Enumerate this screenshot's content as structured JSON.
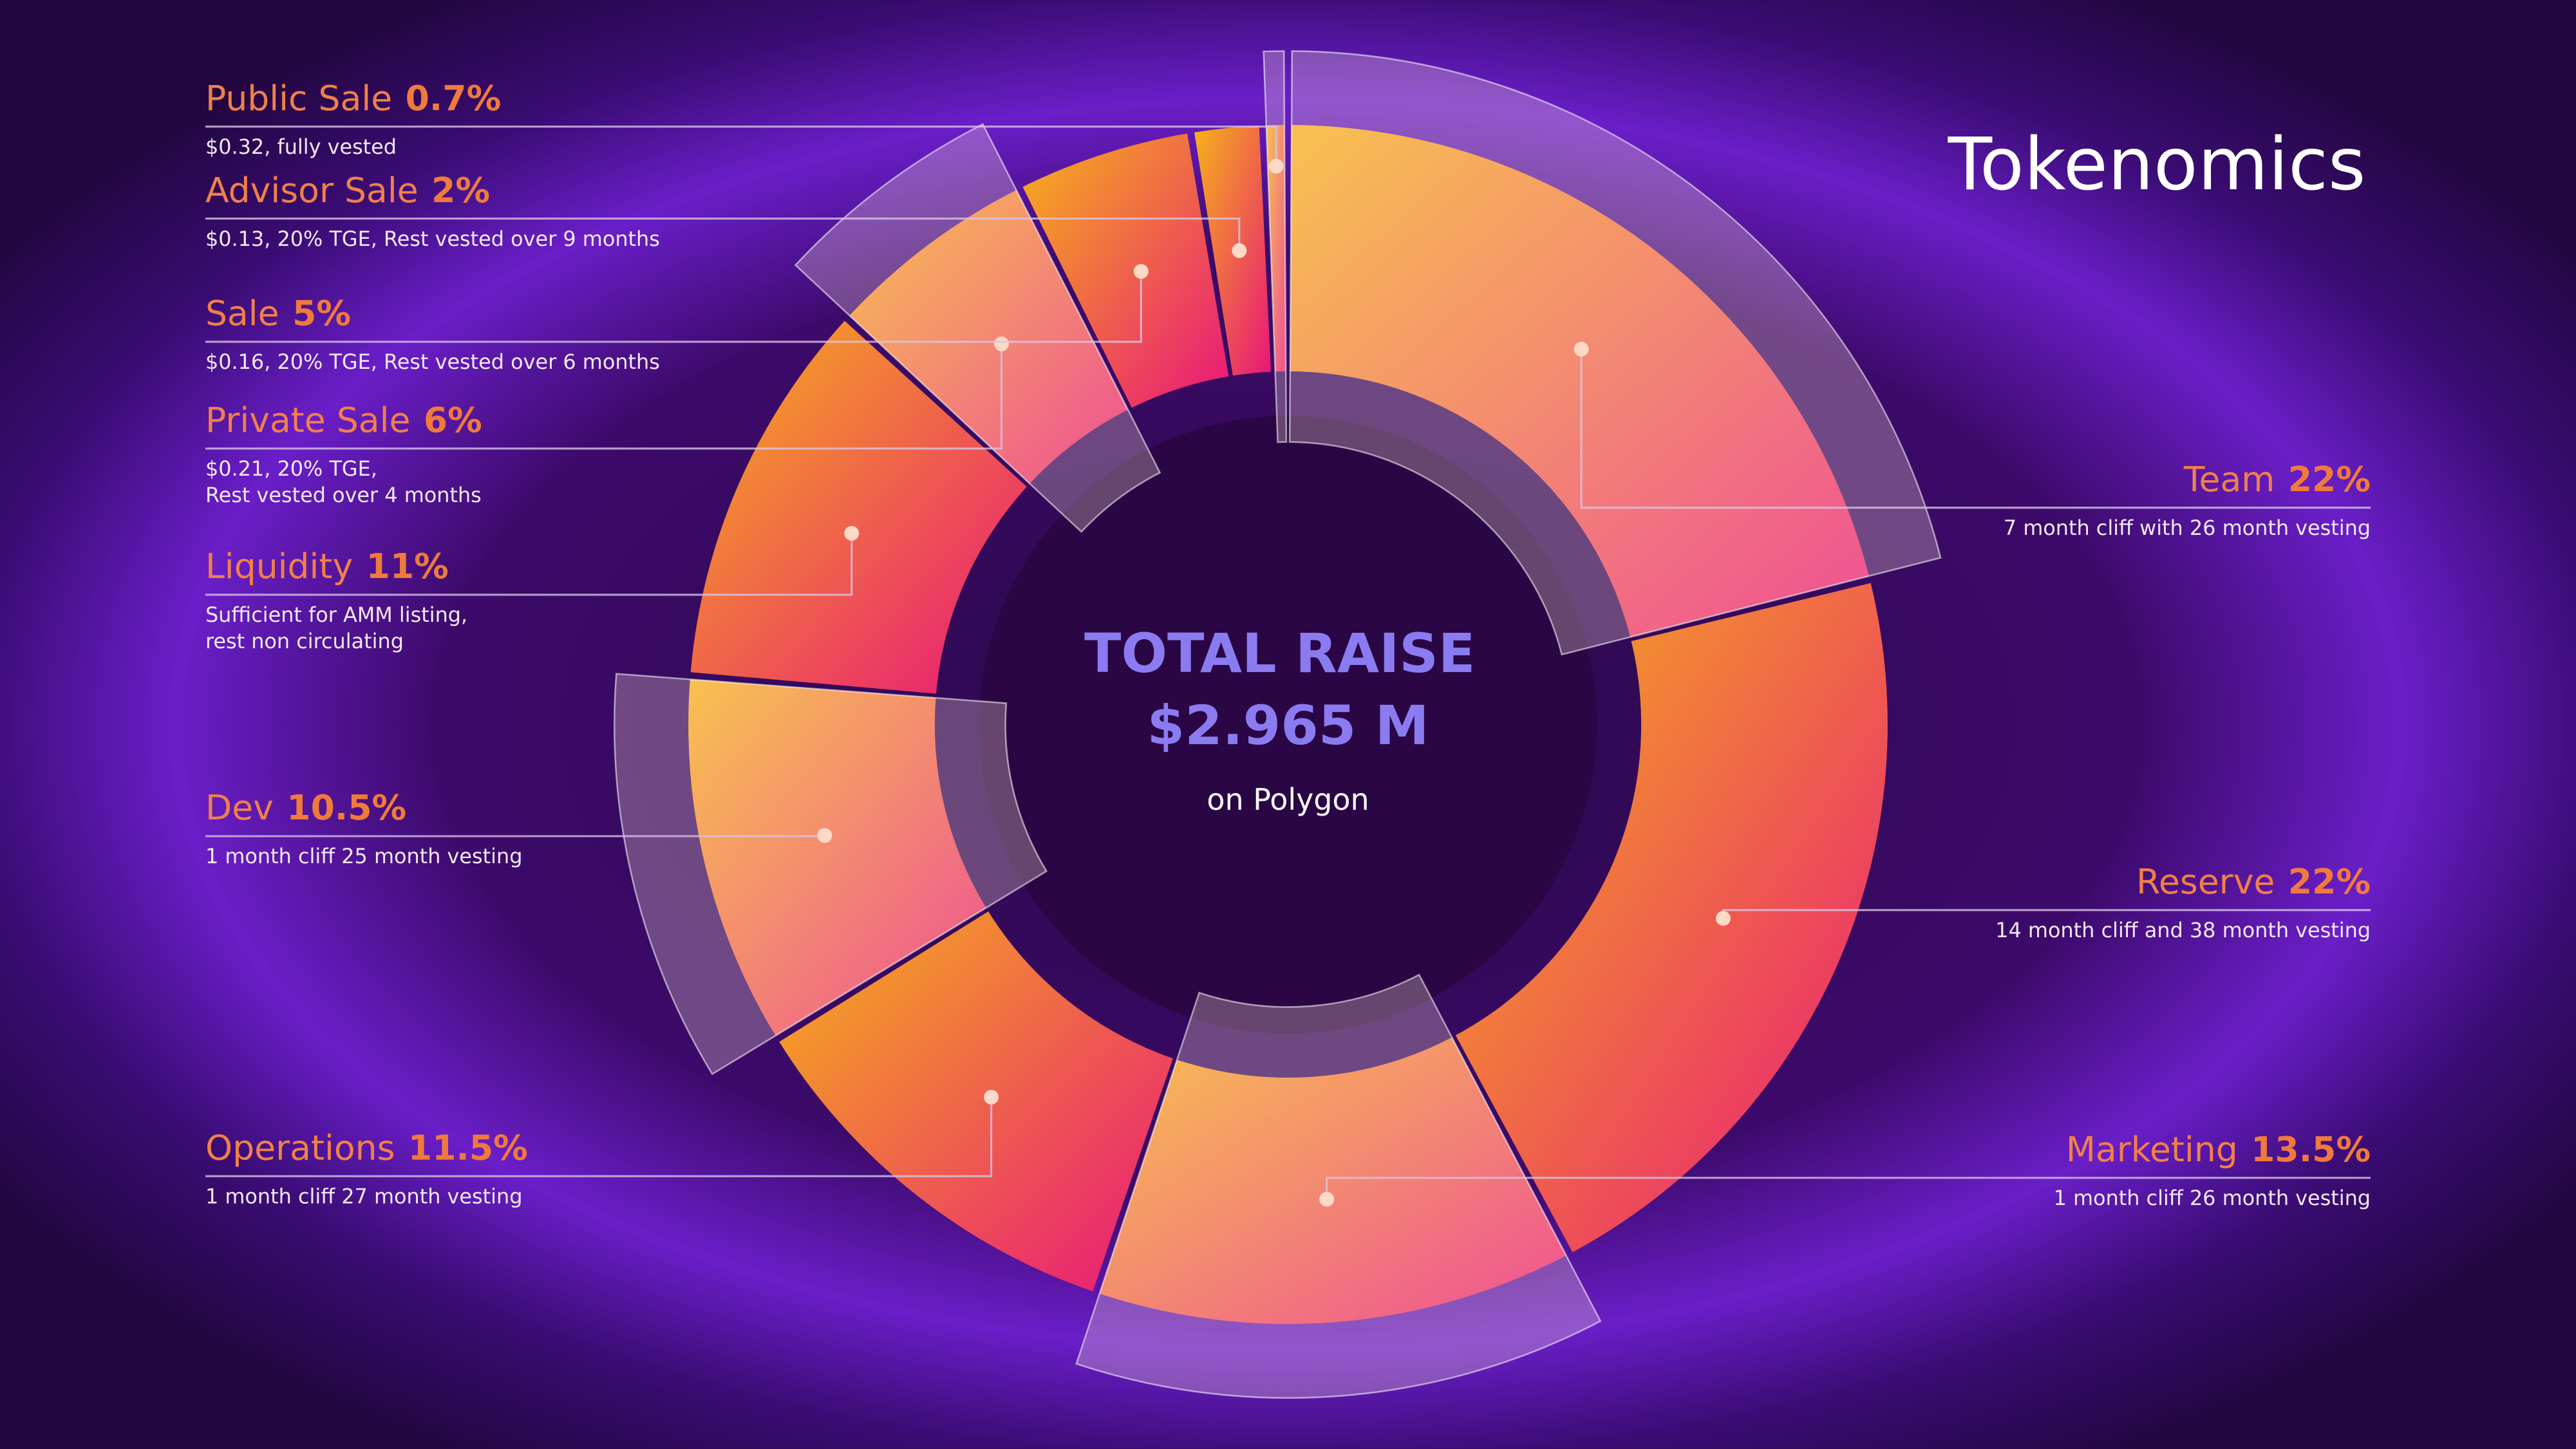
{
  "chart_data": {
    "type": "pie",
    "title": "Tokenomics",
    "annotations": [
      "TOTAL RAISE",
      "$2.965 M",
      "on Polygon"
    ],
    "categories": [
      "Team",
      "Reserve",
      "Marketing",
      "Operations",
      "Dev",
      "Liquidity",
      "Private Sale",
      "Sale",
      "Advisor Sale",
      "Public Sale"
    ],
    "values": [
      22,
      22,
      13.5,
      11.5,
      10.5,
      11,
      6,
      5,
      2,
      0.7
    ],
    "value_labels": [
      "22%",
      "22%",
      "13.5%",
      "11.5%",
      "10.5%",
      "11%",
      "6%",
      "5%",
      "2%",
      "0.7%"
    ],
    "descriptions": [
      [
        "7 month cliff with 26 month vesting"
      ],
      [
        "14 month cliff and 38 month vesting"
      ],
      [
        "1 month cliff 26 month vesting"
      ],
      [
        "1 month cliff 27 month vesting"
      ],
      [
        "1 month cliff 25 month vesting"
      ],
      [
        "Sufficient for AMM listing,",
        "rest non circulating"
      ],
      [
        "$0.21, 20% TGE,",
        "Rest vested over 4 months"
      ],
      [
        "$0.16, 20% TGE, Rest vested over 6 months"
      ],
      [
        "$0.13, 20% TGE, Rest vested over 9 months"
      ],
      [
        "$0.32, fully vested"
      ]
    ],
    "highlighted": [
      true,
      false,
      true,
      false,
      true,
      false,
      true,
      false,
      false,
      true
    ],
    "gradient": [
      "#f6b21a",
      "#e8157a"
    ]
  }
}
